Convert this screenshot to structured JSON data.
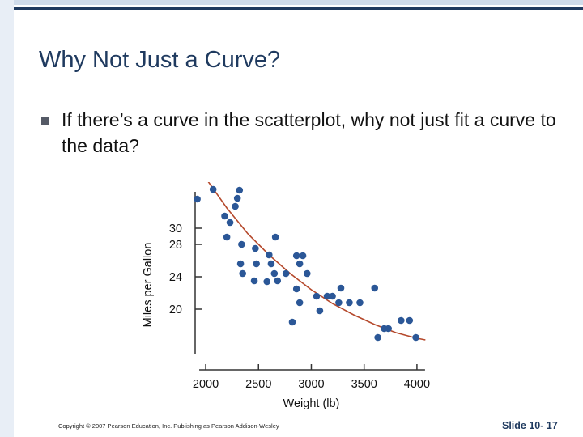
{
  "slide": {
    "title": "Why Not Just a Curve?",
    "bullet": "If there’s a curve in the scatterplot, why not just fit a curve to the data?",
    "copyright": "Copyright © 2007 Pearson Education, Inc. Publishing as Pearson Addison-Wesley",
    "slide_number": "Slide 10- 17"
  },
  "chart_data": {
    "type": "scatter",
    "title": "",
    "xlabel": "Weight (lb)",
    "ylabel": "Miles per Gallon",
    "xlim": [
      1900,
      4200
    ],
    "ylim": [
      14.5,
      34.5
    ],
    "xticks": [
      2000,
      2500,
      3000,
      3500,
      4000
    ],
    "yticks": [
      20,
      24,
      28,
      30
    ],
    "grid": false,
    "colors": {
      "points": "#2b5797",
      "curve": "#b5492c",
      "axis": "#333333"
    },
    "points": [
      {
        "x": 1920,
        "y": 33.6
      },
      {
        "x": 2070,
        "y": 34.8
      },
      {
        "x": 2180,
        "y": 31.5
      },
      {
        "x": 2230,
        "y": 30.7
      },
      {
        "x": 2280,
        "y": 32.7
      },
      {
        "x": 2300,
        "y": 33.7
      },
      {
        "x": 2320,
        "y": 34.7
      },
      {
        "x": 2200,
        "y": 28.9
      },
      {
        "x": 2340,
        "y": 28.0
      },
      {
        "x": 2330,
        "y": 25.6
      },
      {
        "x": 2350,
        "y": 24.4
      },
      {
        "x": 2460,
        "y": 23.5
      },
      {
        "x": 2470,
        "y": 27.5
      },
      {
        "x": 2480,
        "y": 25.6
      },
      {
        "x": 2580,
        "y": 23.4
      },
      {
        "x": 2600,
        "y": 26.7
      },
      {
        "x": 2620,
        "y": 25.6
      },
      {
        "x": 2650,
        "y": 24.4
      },
      {
        "x": 2660,
        "y": 28.9
      },
      {
        "x": 2680,
        "y": 23.5
      },
      {
        "x": 2760,
        "y": 24.4
      },
      {
        "x": 2820,
        "y": 18.4
      },
      {
        "x": 2860,
        "y": 26.6
      },
      {
        "x": 2860,
        "y": 22.5
      },
      {
        "x": 2890,
        "y": 25.6
      },
      {
        "x": 2890,
        "y": 20.8
      },
      {
        "x": 2920,
        "y": 26.6
      },
      {
        "x": 2960,
        "y": 24.4
      },
      {
        "x": 3050,
        "y": 21.6
      },
      {
        "x": 3080,
        "y": 19.8
      },
      {
        "x": 3150,
        "y": 21.6
      },
      {
        "x": 3200,
        "y": 21.6
      },
      {
        "x": 3260,
        "y": 20.8
      },
      {
        "x": 3280,
        "y": 22.6
      },
      {
        "x": 3360,
        "y": 20.8
      },
      {
        "x": 3460,
        "y": 20.8
      },
      {
        "x": 3600,
        "y": 22.6
      },
      {
        "x": 3630,
        "y": 16.5
      },
      {
        "x": 3690,
        "y": 17.6
      },
      {
        "x": 3730,
        "y": 17.6
      },
      {
        "x": 3850,
        "y": 18.6
      },
      {
        "x": 3930,
        "y": 18.6
      },
      {
        "x": 3990,
        "y": 16.5
      }
    ],
    "curve": [
      {
        "x": 2000,
        "y": 36.2
      },
      {
        "x": 2200,
        "y": 32.5
      },
      {
        "x": 2400,
        "y": 29.3
      },
      {
        "x": 2600,
        "y": 26.7
      },
      {
        "x": 2800,
        "y": 24.4
      },
      {
        "x": 3000,
        "y": 22.4
      },
      {
        "x": 3200,
        "y": 20.7
      },
      {
        "x": 3400,
        "y": 19.3
      },
      {
        "x": 3600,
        "y": 18.1
      },
      {
        "x": 3800,
        "y": 17.1
      },
      {
        "x": 4000,
        "y": 16.4
      },
      {
        "x": 4080,
        "y": 16.2
      }
    ]
  }
}
